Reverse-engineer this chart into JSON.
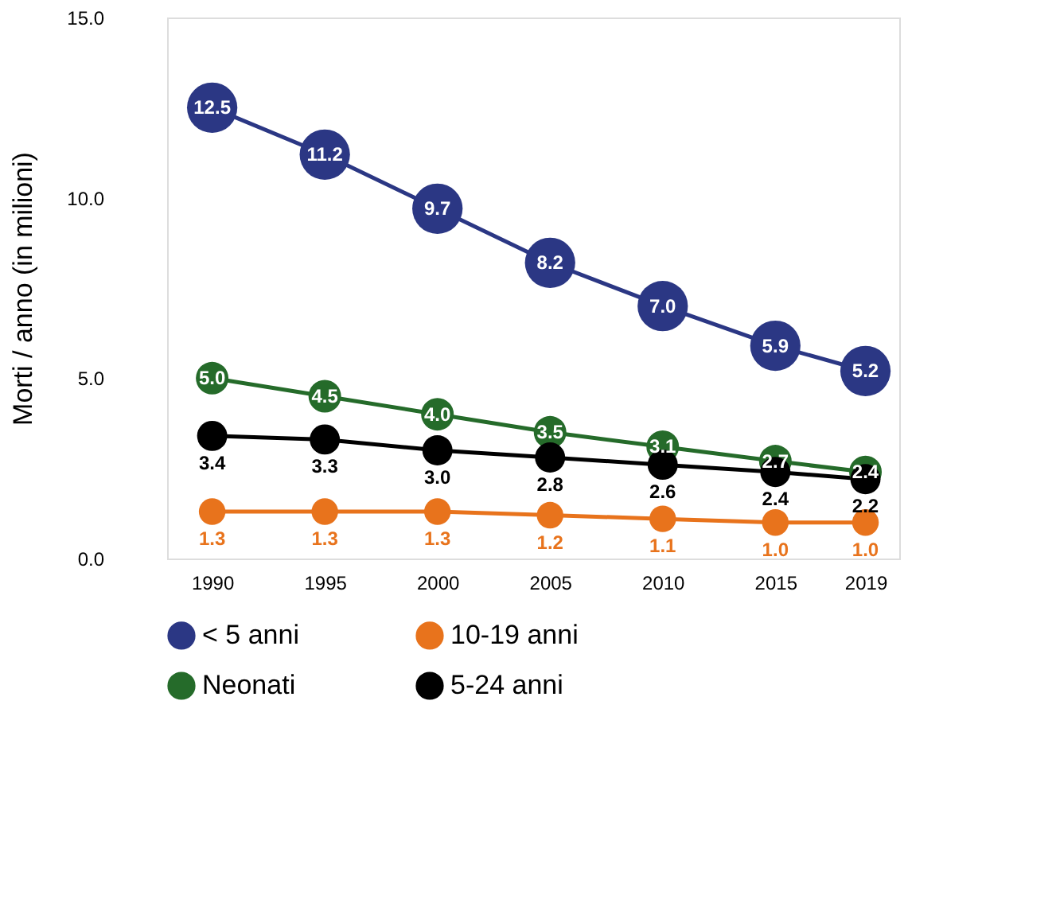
{
  "chart_data": {
    "type": "line",
    "ylabel": "Morti / anno (in milioni)",
    "x": [
      1990,
      1995,
      2000,
      2005,
      2010,
      2015,
      2019
    ],
    "series": [
      {
        "name": "< 5 anni",
        "color": "#2b3784",
        "values": [
          12.5,
          11.2,
          9.7,
          8.2,
          7.0,
          5.9,
          5.2
        ],
        "value_labels": [
          "12.5",
          "11.2",
          "9.7",
          "8.2",
          "7.0",
          "5.9",
          "5.2"
        ]
      },
      {
        "name": "10-19 anni",
        "color": "#e8731c",
        "values": [
          1.3,
          1.3,
          1.3,
          1.2,
          1.1,
          1.0,
          1.0
        ],
        "value_labels": [
          "1.3",
          "1.3",
          "1.3",
          "1.2",
          "1.1",
          "1.0",
          "1.0"
        ]
      },
      {
        "name": "Neonati",
        "color": "#256b2a",
        "values": [
          5.0,
          4.5,
          4.0,
          3.5,
          3.1,
          2.7,
          2.4
        ],
        "value_labels": [
          "5.0",
          "4.5",
          "4.0",
          "3.5",
          "3.1",
          "2.7",
          "2.4"
        ]
      },
      {
        "name": "5-24 anni",
        "color": "#000000",
        "values": [
          3.4,
          3.3,
          3.0,
          2.8,
          2.6,
          2.4,
          2.2
        ],
        "value_labels": [
          "3.4",
          "3.3",
          "3.0",
          "2.8",
          "2.6",
          "2.4",
          "2.2"
        ]
      }
    ],
    "xlim": [
      1988,
      2020.5
    ],
    "xticks": [
      1990,
      1995,
      2000,
      2005,
      2010,
      2015,
      2019
    ],
    "ylim": [
      0,
      15
    ],
    "yticks": [
      {
        "value": 0,
        "label": "0.0"
      },
      {
        "value": 5,
        "label": "5.0"
      },
      {
        "value": 10,
        "label": "10.0"
      },
      {
        "value": 15,
        "label": "15.0"
      }
    ],
    "marker": "circle",
    "line_style": "solid",
    "grid": false,
    "legend": "bottom"
  }
}
